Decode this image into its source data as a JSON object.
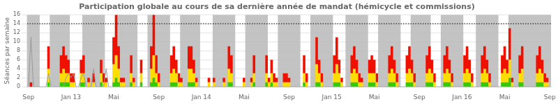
{
  "chart_data": {
    "type": "area",
    "stacked": true,
    "title": "Participation globale au cours de sa dernière année de mandat (hémicycle et commissions)",
    "ylabel": "Séances par semaine",
    "categories": [
      "Sep",
      null,
      null,
      null,
      null,
      null,
      null,
      null,
      null,
      null,
      null,
      null,
      null,
      null,
      null,
      null,
      null,
      "Jan 13",
      null,
      null,
      null,
      null,
      null,
      null,
      null,
      null,
      null,
      null,
      null,
      null,
      null,
      null,
      null,
      null,
      "Mai",
      null,
      null,
      null,
      null,
      null,
      null,
      null,
      null,
      null,
      null,
      null,
      null,
      null,
      null,
      null,
      null,
      null,
      "Sep",
      null,
      null,
      null,
      null,
      null,
      null,
      null,
      null,
      null,
      null,
      null,
      null,
      null,
      null,
      null,
      null,
      "Jan 14",
      null,
      null,
      null,
      null,
      null,
      null,
      null,
      null,
      null,
      null,
      null,
      null,
      null,
      null,
      null,
      null,
      "Mai",
      null,
      null,
      null,
      null,
      null,
      null,
      null,
      null,
      null,
      null,
      null,
      null,
      null,
      null,
      null,
      null,
      null,
      "Sep",
      null,
      null,
      null,
      null,
      null,
      null,
      null,
      null,
      null,
      null,
      null,
      null,
      null,
      null,
      null,
      null,
      "Jan 15",
      null,
      null,
      null,
      null,
      null,
      null,
      null,
      null,
      null,
      null,
      null,
      null,
      null,
      null,
      null,
      null,
      "Mai",
      null,
      null,
      null,
      null,
      null,
      null,
      null,
      null,
      null,
      null,
      null,
      null,
      null,
      null,
      null,
      null,
      null,
      "Sep",
      null,
      null,
      null,
      null,
      null,
      null,
      null,
      null,
      null,
      null,
      null,
      null,
      null,
      null,
      null,
      null,
      "Jan 16",
      null,
      null,
      null,
      null,
      null,
      null,
      null,
      null,
      null,
      null,
      null,
      null,
      null,
      null,
      null,
      null,
      "Mai",
      null,
      null,
      null,
      null,
      null,
      null,
      null,
      null,
      null,
      null,
      null,
      null,
      null,
      null,
      null,
      null,
      null,
      "Sep"
    ],
    "series": [
      {
        "color": "#33cc00",
        "values": [
          0,
          0,
          0,
          0,
          0,
          0,
          0,
          0,
          1,
          0,
          0,
          0,
          0,
          1,
          1,
          1,
          1,
          0,
          0,
          0,
          0,
          1,
          1,
          0,
          0,
          0,
          0,
          0,
          0,
          1,
          0,
          0,
          0,
          0,
          1,
          2,
          1,
          0,
          0,
          0,
          0,
          1,
          0,
          0,
          0,
          1,
          0,
          0,
          0,
          1,
          2,
          1,
          0,
          0,
          0,
          0,
          0,
          1,
          1,
          1,
          0,
          0,
          0,
          0,
          1,
          1,
          1,
          0,
          0,
          0,
          0,
          0,
          0,
          0,
          0,
          0,
          0,
          0,
          0,
          0,
          1,
          1,
          0,
          0,
          0,
          0,
          0,
          0,
          0,
          0,
          1,
          0,
          0,
          0,
          0,
          1,
          0,
          1,
          0,
          0,
          0,
          0,
          0,
          0,
          0,
          0,
          0,
          0,
          0,
          0,
          1,
          0,
          0,
          0,
          0,
          1,
          1,
          0,
          0,
          0,
          0,
          0,
          1,
          1,
          1,
          0,
          0,
          0,
          0,
          1,
          1,
          1,
          0,
          0,
          0,
          0,
          1,
          1,
          1,
          0,
          0,
          0,
          0,
          0,
          1,
          1,
          1,
          0,
          0,
          0,
          0,
          1,
          1,
          1,
          0,
          0,
          0,
          0,
          0,
          1,
          1,
          1,
          0,
          0,
          0,
          0,
          1,
          1,
          1,
          0,
          0,
          0,
          0,
          0,
          1,
          1,
          1,
          0,
          0,
          0,
          0,
          1,
          1,
          1,
          0,
          0,
          0,
          0,
          0,
          1,
          1,
          1,
          2,
          0,
          0,
          0,
          1,
          1,
          0,
          0,
          0,
          0,
          0,
          1,
          1,
          1,
          0,
          0,
          0
        ]
      },
      {
        "color": "#ffdd00",
        "values": [
          0,
          0,
          0,
          0,
          0,
          0,
          0,
          0,
          3,
          0,
          0,
          0,
          0,
          2,
          3,
          2,
          2,
          1,
          1,
          0,
          0,
          2,
          2,
          0,
          1,
          0,
          1,
          0,
          0,
          2,
          1,
          1,
          0,
          0,
          4,
          5,
          3,
          1,
          1,
          0,
          0,
          2,
          1,
          0,
          0,
          2,
          0,
          0,
          0,
          3,
          5,
          2,
          1,
          0,
          0,
          0,
          0,
          2,
          3,
          2,
          1,
          1,
          0,
          0,
          3,
          3,
          2,
          1,
          0,
          0,
          0,
          0,
          1,
          0,
          1,
          0,
          0,
          0,
          1,
          0,
          3,
          2,
          0,
          0,
          0,
          0,
          1,
          0,
          0,
          1,
          2,
          0,
          0,
          0,
          0,
          2,
          1,
          2,
          1,
          1,
          0,
          0,
          1,
          1,
          1,
          0,
          0,
          0,
          0,
          0,
          2,
          1,
          0,
          0,
          0,
          4,
          2,
          1,
          0,
          0,
          0,
          0,
          2,
          4,
          2,
          1,
          0,
          0,
          0,
          2,
          3,
          2,
          1,
          1,
          0,
          0,
          2,
          2,
          2,
          1,
          0,
          0,
          0,
          0,
          2,
          3,
          2,
          1,
          0,
          0,
          0,
          2,
          3,
          2,
          1,
          0,
          0,
          0,
          0,
          2,
          3,
          2,
          1,
          0,
          0,
          0,
          2,
          3,
          2,
          1,
          0,
          0,
          0,
          0,
          2,
          3,
          2,
          1,
          0,
          0,
          0,
          2,
          3,
          2,
          1,
          0,
          0,
          0,
          0,
          2,
          3,
          2,
          4,
          1,
          0,
          0,
          2,
          3,
          0,
          0,
          0,
          0,
          0,
          2,
          3,
          2,
          1,
          1,
          0
        ]
      },
      {
        "color": "#ee1100",
        "values": [
          0,
          1,
          0,
          0,
          0,
          0,
          0,
          0,
          5,
          0,
          0,
          0,
          0,
          4,
          5,
          4,
          3,
          2,
          2,
          0,
          0,
          3,
          4,
          0,
          1,
          0,
          2,
          0,
          0,
          3,
          2,
          1,
          0,
          0,
          6,
          9,
          5,
          1,
          1,
          0,
          0,
          4,
          1,
          0,
          0,
          3,
          0,
          0,
          0,
          5,
          9,
          4,
          2,
          0,
          0,
          0,
          0,
          4,
          5,
          3,
          2,
          1,
          0,
          0,
          5,
          5,
          3,
          1,
          0,
          0,
          0,
          0,
          1,
          0,
          1,
          0,
          0,
          0,
          1,
          0,
          5,
          4,
          0,
          0,
          0,
          0,
          1,
          0,
          0,
          1,
          4,
          0,
          0,
          0,
          0,
          4,
          1,
          3,
          2,
          1,
          0,
          0,
          2,
          2,
          1,
          0,
          0,
          0,
          0,
          0,
          4,
          2,
          0,
          0,
          0,
          6,
          3,
          2,
          0,
          0,
          0,
          0,
          4,
          6,
          3,
          1,
          0,
          0,
          0,
          4,
          5,
          3,
          2,
          1,
          0,
          0,
          3,
          4,
          3,
          2,
          0,
          0,
          0,
          0,
          4,
          5,
          3,
          2,
          0,
          0,
          0,
          4,
          5,
          3,
          2,
          0,
          0,
          0,
          0,
          4,
          5,
          3,
          2,
          0,
          0,
          0,
          4,
          5,
          3,
          2,
          0,
          0,
          0,
          0,
          4,
          5,
          3,
          2,
          0,
          0,
          0,
          4,
          5,
          3,
          2,
          0,
          0,
          0,
          0,
          4,
          5,
          3,
          7,
          1,
          0,
          0,
          4,
          5,
          0,
          0,
          0,
          0,
          0,
          4,
          5,
          3,
          2,
          1,
          0
        ]
      },
      {
        "type": "line",
        "color": "#999999",
        "values": [
          0,
          11,
          0,
          0,
          0,
          0,
          0,
          0,
          3,
          0,
          0,
          0,
          0,
          0,
          0,
          2,
          3,
          2,
          3,
          0,
          0,
          2,
          3,
          0,
          0,
          0,
          4,
          0,
          0,
          0,
          0,
          4,
          0,
          0,
          0,
          0,
          0,
          0,
          0,
          0,
          0,
          0,
          0,
          0,
          0,
          0,
          0,
          0,
          0,
          0,
          0,
          0,
          0,
          0,
          0,
          0,
          0,
          0,
          0,
          0,
          0,
          0,
          0,
          0,
          0,
          0,
          0,
          0,
          0,
          0,
          0,
          0,
          0,
          0,
          0,
          0,
          0,
          0,
          0,
          0,
          0,
          0,
          0,
          0,
          0,
          0,
          0,
          0,
          0,
          0,
          0,
          0,
          0,
          0,
          0,
          0,
          0,
          0,
          0,
          0,
          0,
          0,
          0,
          0,
          0,
          0,
          0,
          0,
          0,
          0,
          0,
          0,
          0,
          0,
          0,
          0,
          0,
          0,
          0,
          0,
          0,
          0,
          0,
          0,
          0,
          0,
          0,
          0,
          0,
          0,
          0,
          0,
          0,
          0,
          0,
          0,
          0,
          0,
          0,
          0,
          0,
          0,
          0,
          0,
          0,
          0,
          0,
          0,
          0,
          0,
          0,
          0,
          0,
          0,
          0,
          0,
          0,
          0,
          0,
          0,
          0,
          0,
          0,
          0,
          0,
          0,
          0,
          0,
          0,
          0,
          0,
          0,
          0,
          0,
          0,
          0,
          0,
          0,
          0,
          0,
          0,
          0,
          0,
          0,
          0,
          0,
          0,
          0,
          0,
          0,
          0,
          0,
          0,
          0,
          0,
          0,
          0,
          0,
          0,
          0,
          0,
          0,
          0,
          0,
          0,
          0,
          0,
          0,
          0
        ]
      }
    ],
    "bands": [
      [
        0,
        5
      ],
      [
        9,
        17
      ],
      [
        22,
        31
      ],
      [
        35,
        44
      ],
      [
        48,
        57
      ],
      [
        61,
        69
      ],
      [
        74,
        83
      ],
      [
        87,
        96
      ],
      [
        100,
        109
      ],
      [
        113,
        122
      ],
      [
        127,
        136
      ],
      [
        140,
        149
      ],
      [
        153,
        161
      ],
      [
        165,
        174
      ],
      [
        179,
        188
      ],
      [
        192,
        209
      ]
    ],
    "band_color": "#b8b8b8",
    "reference_line": 14,
    "ylim": [
      0,
      16
    ],
    "yticks": [
      0,
      2,
      4,
      6,
      8,
      10,
      12,
      14,
      16
    ],
    "grid": true
  }
}
